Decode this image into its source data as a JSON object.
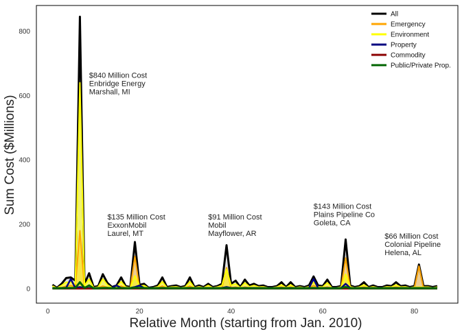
{
  "chart_data": {
    "type": "line",
    "title": "",
    "xlabel": "Relative Month (starting from Jan. 2010)",
    "ylabel": "Sum Cost ($Millions)",
    "xlim": [
      -2.5,
      89.5
    ],
    "ylim": [
      -45,
      880
    ],
    "xticks": [
      0,
      20,
      40,
      60,
      80
    ],
    "yticks": [
      0,
      200,
      400,
      600,
      800
    ],
    "grid": false,
    "legend_position": "top-right",
    "x": [
      1,
      2,
      3,
      4,
      5,
      6,
      7,
      8,
      9,
      10,
      11,
      12,
      13,
      14,
      15,
      16,
      17,
      18,
      19,
      20,
      21,
      22,
      23,
      24,
      25,
      26,
      27,
      28,
      29,
      30,
      31,
      32,
      33,
      34,
      35,
      36,
      37,
      38,
      39,
      40,
      41,
      42,
      43,
      44,
      45,
      46,
      47,
      48,
      49,
      50,
      51,
      52,
      53,
      54,
      55,
      56,
      57,
      58,
      59,
      60,
      61,
      62,
      63,
      64,
      65,
      66,
      67,
      68,
      69,
      70,
      71,
      72,
      73,
      74,
      75,
      76,
      77,
      78,
      79,
      80,
      81,
      82,
      83,
      84,
      85
    ],
    "series": [
      {
        "name": "All",
        "color": "#000000",
        "values": [
          12,
          3,
          15,
          33,
          35,
          25,
          845,
          15,
          48,
          5,
          8,
          45,
          18,
          5,
          10,
          35,
          8,
          5,
          145,
          12,
          15,
          3,
          5,
          10,
          35,
          5,
          8,
          10,
          5,
          8,
          35,
          5,
          10,
          5,
          15,
          5,
          8,
          15,
          135,
          15,
          25,
          5,
          28,
          10,
          15,
          8,
          10,
          5,
          5,
          8,
          20,
          5,
          20,
          5,
          8,
          5,
          10,
          38,
          10,
          8,
          28,
          5,
          5,
          8,
          153,
          10,
          5,
          8,
          20,
          5,
          10,
          5,
          5,
          10,
          8,
          20,
          8,
          10,
          5,
          8,
          75,
          8,
          8,
          5,
          8
        ]
      },
      {
        "name": "Emergency",
        "color": "#ffa500",
        "values": [
          2,
          1,
          3,
          8,
          10,
          5,
          180,
          3,
          10,
          1,
          2,
          8,
          4,
          1,
          2,
          8,
          2,
          1,
          100,
          3,
          3,
          1,
          1,
          2,
          8,
          1,
          2,
          2,
          1,
          2,
          8,
          1,
          2,
          1,
          3,
          1,
          2,
          3,
          65,
          3,
          5,
          1,
          5,
          2,
          3,
          2,
          2,
          1,
          1,
          2,
          5,
          1,
          5,
          1,
          2,
          1,
          2,
          10,
          2,
          2,
          5,
          1,
          1,
          2,
          95,
          2,
          1,
          2,
          5,
          1,
          2,
          1,
          1,
          2,
          2,
          5,
          2,
          2,
          1,
          2,
          70,
          2,
          2,
          1,
          2
        ]
      },
      {
        "name": "Environment",
        "color": "#ffff00",
        "values": [
          8,
          2,
          10,
          20,
          20,
          15,
          640,
          10,
          30,
          3,
          5,
          30,
          12,
          3,
          6,
          22,
          5,
          3,
          40,
          8,
          10,
          2,
          3,
          6,
          22,
          3,
          5,
          6,
          3,
          5,
          22,
          3,
          6,
          3,
          10,
          3,
          5,
          10,
          60,
          10,
          15,
          3,
          18,
          6,
          10,
          5,
          6,
          3,
          3,
          5,
          12,
          3,
          12,
          3,
          5,
          3,
          6,
          20,
          6,
          5,
          18,
          3,
          3,
          5,
          45,
          6,
          3,
          5,
          12,
          3,
          6,
          3,
          3,
          6,
          5,
          12,
          5,
          6,
          3,
          5,
          5,
          5,
          5,
          3,
          5
        ]
      },
      {
        "name": "Property",
        "color": "#000080",
        "values": [
          2,
          2,
          2,
          3,
          30,
          2,
          5,
          2,
          2,
          2,
          2,
          2,
          2,
          2,
          10,
          2,
          2,
          2,
          5,
          10,
          2,
          2,
          2,
          2,
          2,
          2,
          2,
          2,
          2,
          2,
          2,
          2,
          2,
          2,
          2,
          2,
          2,
          2,
          5,
          2,
          2,
          2,
          2,
          2,
          2,
          2,
          2,
          2,
          2,
          2,
          2,
          2,
          2,
          2,
          2,
          2,
          2,
          30,
          2,
          2,
          2,
          2,
          2,
          2,
          15,
          2,
          2,
          2,
          2,
          2,
          2,
          2,
          2,
          2,
          2,
          2,
          2,
          2,
          2,
          2,
          2,
          2,
          2,
          2,
          2
        ]
      },
      {
        "name": "Commodity",
        "color": "#8b0000",
        "values": [
          0,
          0,
          0,
          0,
          0,
          0,
          0,
          0,
          0,
          0,
          0,
          0,
          0,
          0,
          0,
          0,
          0,
          0,
          0,
          0,
          0,
          0,
          0,
          0,
          0,
          0,
          0,
          0,
          0,
          0,
          0,
          0,
          0,
          0,
          0,
          0,
          0,
          0,
          0,
          0,
          0,
          0,
          0,
          0,
          0,
          0,
          0,
          0,
          0,
          0,
          0,
          0,
          0,
          0,
          0,
          0,
          0,
          0,
          0,
          0,
          0,
          0,
          0,
          0,
          0,
          0,
          0,
          0,
          0,
          0,
          0,
          0,
          0,
          0,
          0,
          0,
          0,
          0,
          0,
          0,
          0,
          0,
          0,
          0,
          0
        ]
      },
      {
        "name": "Public/Private Prop.",
        "color": "#006400",
        "values": [
          1,
          1,
          1,
          2,
          2,
          2,
          20,
          2,
          10,
          1,
          1,
          2,
          2,
          1,
          1,
          2,
          1,
          1,
          3,
          2,
          2,
          1,
          1,
          1,
          2,
          1,
          1,
          1,
          1,
          1,
          2,
          1,
          1,
          1,
          1,
          1,
          1,
          1,
          2,
          1,
          1,
          1,
          1,
          1,
          1,
          1,
          1,
          1,
          1,
          1,
          1,
          1,
          1,
          1,
          1,
          1,
          1,
          2,
          1,
          1,
          1,
          1,
          1,
          1,
          5,
          1,
          1,
          1,
          1,
          1,
          1,
          1,
          1,
          1,
          1,
          1,
          1,
          1,
          1,
          1,
          1,
          1,
          1,
          1,
          1
        ]
      }
    ],
    "annotations": [
      {
        "x": 9,
        "y": 655,
        "lines": [
          "$840 Million Cost",
          "Enbridge Energy",
          "Marshall, MI"
        ]
      },
      {
        "x": 13,
        "y": 215,
        "lines": [
          "$135 Million Cost",
          "ExxonMobil",
          "Laurel, MT"
        ]
      },
      {
        "x": 35,
        "y": 215,
        "lines": [
          "$91 Million Cost",
          "Mobil",
          "Mayflower, AR"
        ]
      },
      {
        "x": 58,
        "y": 248,
        "lines": [
          "$143 Million Cost",
          "Plains Pipeline Co",
          "Goleta, CA"
        ]
      },
      {
        "x": 73.5,
        "y": 155,
        "lines": [
          "$66 Million Cost",
          "Colonial Pipeline",
          "Helena, AL"
        ]
      }
    ]
  }
}
